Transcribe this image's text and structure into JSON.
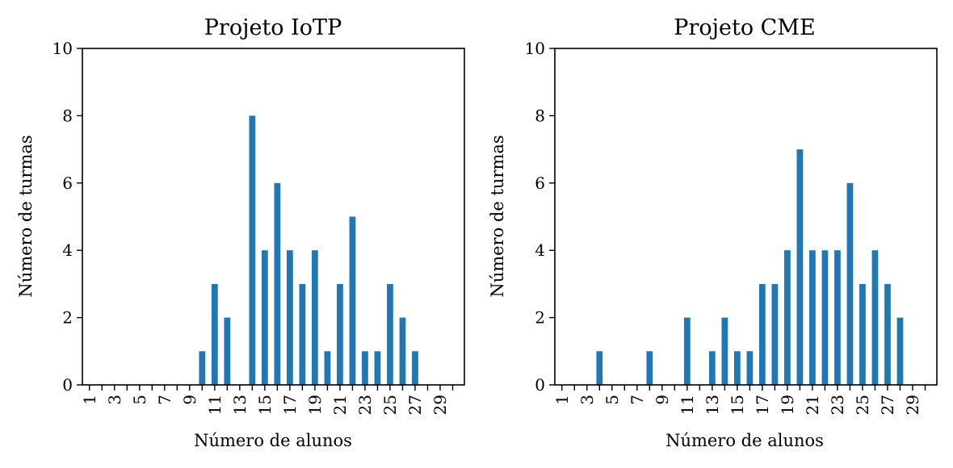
{
  "chart_data": [
    {
      "type": "bar",
      "title": "Projeto IoTP",
      "xlabel": "Número de alunos",
      "ylabel": "Número de turmas",
      "ylim": [
        0,
        10
      ],
      "yticks": [
        "0",
        "2",
        "4",
        "6",
        "8",
        "10"
      ],
      "categories": [
        1,
        2,
        3,
        4,
        5,
        6,
        7,
        8,
        9,
        10,
        11,
        12,
        13,
        14,
        15,
        16,
        17,
        18,
        19,
        20,
        21,
        22,
        23,
        24,
        25,
        26,
        27,
        28,
        29,
        30
      ],
      "xtick_labels": [
        "1",
        "3",
        "5",
        "7",
        "9",
        "11",
        "13",
        "15",
        "17",
        "19",
        "21",
        "23",
        "25",
        "27",
        "29"
      ],
      "values": [
        0,
        0,
        0,
        0,
        0,
        0,
        0,
        0,
        0,
        1,
        3,
        2,
        0,
        8,
        4,
        6,
        4,
        3,
        4,
        1,
        3,
        5,
        1,
        1,
        3,
        2,
        1,
        0,
        0,
        0
      ],
      "bar_color": "#1f77b4",
      "grid": false
    },
    {
      "type": "bar",
      "title": "Projeto CME",
      "xlabel": "Número de alunos",
      "ylabel": "Número de turmas",
      "ylim": [
        0,
        10
      ],
      "yticks": [
        "0",
        "2",
        "4",
        "6",
        "8",
        "10"
      ],
      "categories": [
        1,
        2,
        3,
        4,
        5,
        6,
        7,
        8,
        9,
        10,
        11,
        12,
        13,
        14,
        15,
        16,
        17,
        18,
        19,
        20,
        21,
        22,
        23,
        24,
        25,
        26,
        27,
        28,
        29,
        30
      ],
      "xtick_labels": [
        "1",
        "3",
        "5",
        "7",
        "9",
        "11",
        "13",
        "15",
        "17",
        "19",
        "21",
        "23",
        "25",
        "27",
        "29"
      ],
      "values": [
        0,
        0,
        0,
        1,
        0,
        0,
        0,
        1,
        0,
        0,
        2,
        0,
        1,
        2,
        1,
        1,
        3,
        3,
        4,
        7,
        4,
        4,
        4,
        6,
        3,
        4,
        3,
        2,
        0,
        0
      ],
      "bar_color": "#1f77b4",
      "grid": false
    }
  ]
}
